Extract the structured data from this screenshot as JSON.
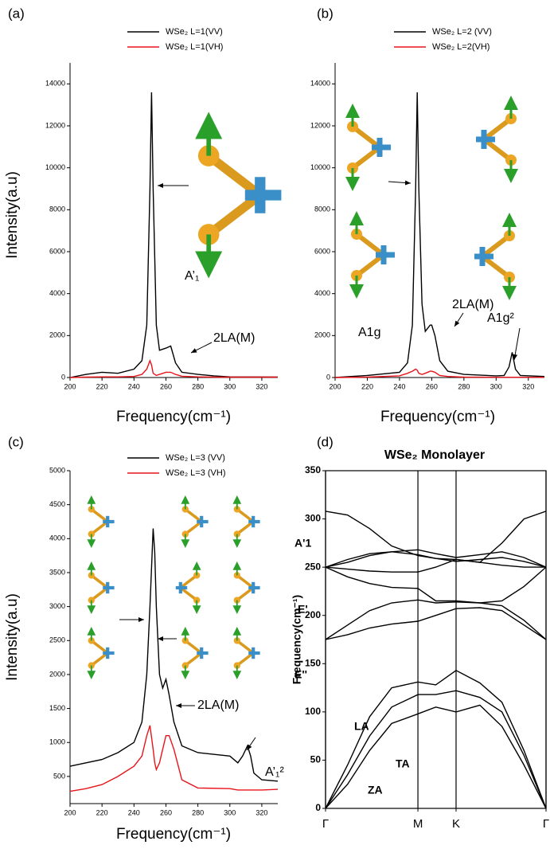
{
  "chart_data": [
    {
      "type": "line",
      "panel": "(a)",
      "xlabel": "Frequency(cm⁻¹)",
      "ylabel": "Intensity(a.u)",
      "x": [
        200,
        210,
        220,
        230,
        240,
        245,
        248,
        250,
        251,
        252,
        254,
        256,
        260,
        263,
        266,
        270,
        280,
        290,
        300,
        330
      ],
      "series": [
        {
          "name": "WSe₂ L=1(VV)",
          "color": "#000000",
          "values": [
            0,
            150,
            250,
            200,
            400,
            800,
            2500,
            9000,
            13600,
            9000,
            2500,
            1300,
            1400,
            1500,
            700,
            250,
            150,
            80,
            30,
            20
          ]
        },
        {
          "name": "WSe₂ L=1(VH)",
          "color": "#e8141c",
          "values": [
            0,
            20,
            30,
            30,
            50,
            150,
            400,
            800,
            600,
            200,
            100,
            150,
            250,
            250,
            150,
            60,
            30,
            20,
            20,
            20
          ]
        }
      ],
      "xlim": [
        200,
        330
      ],
      "xticks": [
        200,
        220,
        240,
        260,
        280,
        300,
        320
      ],
      "ylim": [
        0,
        15000
      ],
      "yticks": [
        0,
        2000,
        4000,
        6000,
        8000,
        10000,
        12000,
        14000
      ],
      "annotations": [
        "A’₁",
        "2LA(M)"
      ]
    },
    {
      "type": "line",
      "panel": "(b)",
      "xlabel": "Frequency(cm⁻¹)",
      "x": [
        200,
        220,
        240,
        245,
        248,
        250,
        251,
        252,
        254,
        256,
        259,
        260,
        262,
        265,
        270,
        280,
        300,
        305,
        308,
        310,
        312,
        315,
        330
      ],
      "series": [
        {
          "name": "WSe₂ L=2 (VV)",
          "color": "#000000",
          "values": [
            0,
            100,
            250,
            700,
            2500,
            9000,
            13600,
            9000,
            3500,
            2200,
            2500,
            2500,
            2000,
            800,
            300,
            150,
            80,
            100,
            500,
            1200,
            400,
            100,
            50
          ]
        },
        {
          "name": "WSe₂ L=2(VH)",
          "color": "#e8141c",
          "values": [
            0,
            20,
            80,
            200,
            300,
            400,
            350,
            200,
            150,
            200,
            300,
            300,
            250,
            100,
            50,
            20,
            10,
            10,
            10,
            10,
            10,
            10,
            10
          ]
        }
      ],
      "xlim": [
        200,
        330
      ],
      "xticks": [
        200,
        220,
        240,
        260,
        280,
        300,
        320
      ],
      "ylim": [
        0,
        15000
      ],
      "yticks": [
        0,
        2000,
        4000,
        6000,
        8000,
        10000,
        12000,
        14000
      ],
      "annotations": [
        "A1g",
        "2LA(M)",
        "A1g²"
      ]
    },
    {
      "type": "line",
      "panel": "(c)",
      "xlabel": "Frequency(cm⁻¹)",
      "ylabel": "Intensity(a.u)",
      "x": [
        200,
        210,
        220,
        230,
        240,
        245,
        248,
        250,
        252,
        253,
        254,
        256,
        258,
        260,
        262,
        265,
        270,
        280,
        300,
        305,
        308,
        311,
        313,
        315,
        320,
        330
      ],
      "series": [
        {
          "name": "WSe₂ L=3 (VV)",
          "color": "#000000",
          "values": [
            650,
            700,
            750,
            850,
            1000,
            1300,
            2000,
            3000,
            4150,
            3800,
            3000,
            2000,
            1800,
            1930,
            1700,
            1300,
            950,
            850,
            800,
            700,
            800,
            950,
            800,
            550,
            450,
            430
          ]
        },
        {
          "name": "WSe₂ L=3 (VH)",
          "color": "#e8141c",
          "values": [
            280,
            320,
            380,
            500,
            650,
            800,
            1100,
            1250,
            900,
            700,
            600,
            700,
            900,
            1100,
            1100,
            900,
            450,
            330,
            320,
            300,
            300,
            300,
            300,
            300,
            300,
            310
          ]
        }
      ],
      "xlim": [
        200,
        330
      ],
      "xticks": [
        200,
        220,
        240,
        260,
        280,
        300,
        320
      ],
      "ylim": [
        100,
        5000
      ],
      "yticks": [
        500,
        1000,
        1500,
        2000,
        2500,
        3000,
        3500,
        4000,
        4500,
        5000
      ],
      "annotations": [
        "2LA(M)",
        "A’₁²"
      ]
    },
    {
      "type": "line",
      "panel": "(d)",
      "title": "WSe₂ Monolayer",
      "ylabel": "Frequency(cm⁻¹)",
      "x": [
        0,
        0.1,
        0.2,
        0.3,
        0.419,
        0.5,
        0.592,
        0.7,
        0.8,
        0.9,
        1
      ],
      "series": [
        {
          "color": "#000000",
          "values": [
            0,
            45,
            95,
            125,
            131,
            128,
            143,
            130,
            110,
            60,
            0
          ]
        },
        {
          "color": "#000000",
          "values": [
            0,
            35,
            75,
            105,
            118,
            118,
            122,
            115,
            100,
            55,
            0
          ]
        },
        {
          "color": "#000000",
          "values": [
            0,
            25,
            60,
            88,
            98,
            105,
            100,
            107,
            85,
            45,
            0
          ]
        },
        {
          "color": "#000000",
          "values": [
            175,
            180,
            187,
            191,
            194,
            200,
            207,
            208,
            205,
            190,
            175
          ]
        },
        {
          "color": "#000000",
          "values": [
            175,
            190,
            205,
            213,
            216,
            213,
            214,
            213,
            210,
            195,
            175
          ]
        },
        {
          "color": "#000000",
          "values": [
            250,
            240,
            233,
            229,
            228,
            215,
            215,
            213,
            215,
            230,
            250
          ]
        },
        {
          "color": "#000000",
          "values": [
            250,
            248,
            246,
            245,
            245,
            250,
            258,
            255,
            252,
            250,
            250
          ]
        },
        {
          "color": "#000000",
          "values": [
            250,
            255,
            262,
            266,
            268,
            264,
            260,
            263,
            266,
            260,
            250
          ]
        },
        {
          "color": "#000000",
          "values": [
            250,
            258,
            264,
            266,
            263,
            259,
            256,
            258,
            260,
            256,
            250
          ]
        },
        {
          "color": "#000000",
          "values": [
            308,
            304,
            290,
            272,
            262,
            259,
            258,
            255,
            275,
            300,
            308
          ]
        }
      ],
      "xlim": [
        0,
        1
      ],
      "xticks": [
        {
          "value": 0,
          "label": "Γ"
        },
        {
          "value": 0.419,
          "label": "M"
        },
        {
          "value": 0.592,
          "label": "K"
        },
        {
          "value": 1,
          "label": "Γ"
        }
      ],
      "ylim": [
        0,
        350
      ],
      "yticks": [
        0,
        50,
        100,
        150,
        200,
        250,
        300,
        350
      ],
      "xgrid": true,
      "frame": true,
      "annotations": [
        "A'1",
        "E'",
        "E''",
        "LA",
        "TA",
        "ZA"
      ]
    }
  ]
}
